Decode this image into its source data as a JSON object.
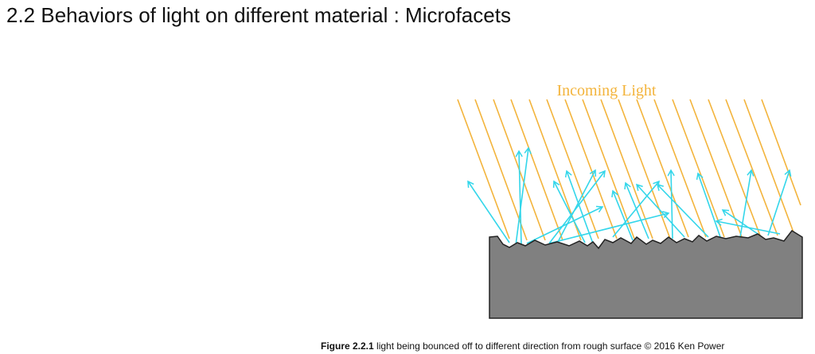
{
  "header": {
    "title": "2.2 Behaviors of light on different material : Microfacets"
  },
  "figure": {
    "label": "Incoming Light",
    "caption": {
      "number": "Figure 2.2.1",
      "text": "light being bounced off to different direction from rough surface © 2016 Ken Power"
    }
  }
}
